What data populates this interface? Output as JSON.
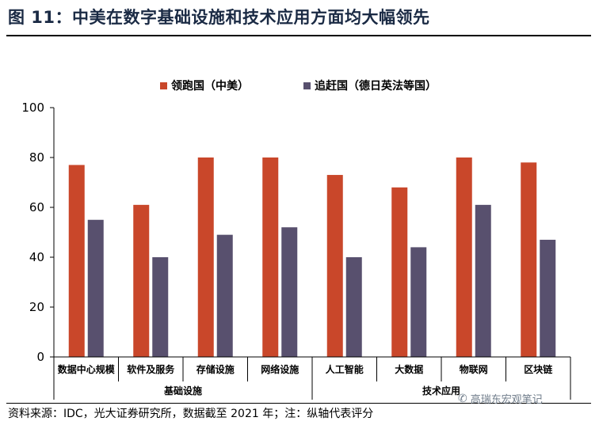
{
  "figure": {
    "title": "图 11：中美在数字基础设施和技术应用方面均大幅领先",
    "source_note": "资料来源：IDC，光大证券研究所，数据截至 2021 年；注：纵轴代表评分",
    "watermark": "高瑞东宏观笔记"
  },
  "chart_data": {
    "type": "bar",
    "categories": [
      "数据中心规模",
      "软件及服务",
      "存储设施",
      "网络设施",
      "人工智能",
      "大数据",
      "物联网",
      "区块链"
    ],
    "groups": [
      {
        "label": "基础设施",
        "start": 0,
        "end": 3
      },
      {
        "label": "技术应用",
        "start": 4,
        "end": 7
      }
    ],
    "series": [
      {
        "name": "领跑国（中美）",
        "color": "#C9472A",
        "values": [
          77,
          61,
          80,
          80,
          73,
          68,
          80,
          78
        ]
      },
      {
        "name": "追赶国（德日英法等国）",
        "color": "#58506E",
        "values": [
          55,
          40,
          49,
          52,
          40,
          44,
          61,
          47
        ]
      }
    ],
    "ylim": [
      0,
      100
    ],
    "yticks": [
      0,
      20,
      40,
      60,
      80,
      100
    ],
    "legend_position": "top-center",
    "grid": false
  }
}
